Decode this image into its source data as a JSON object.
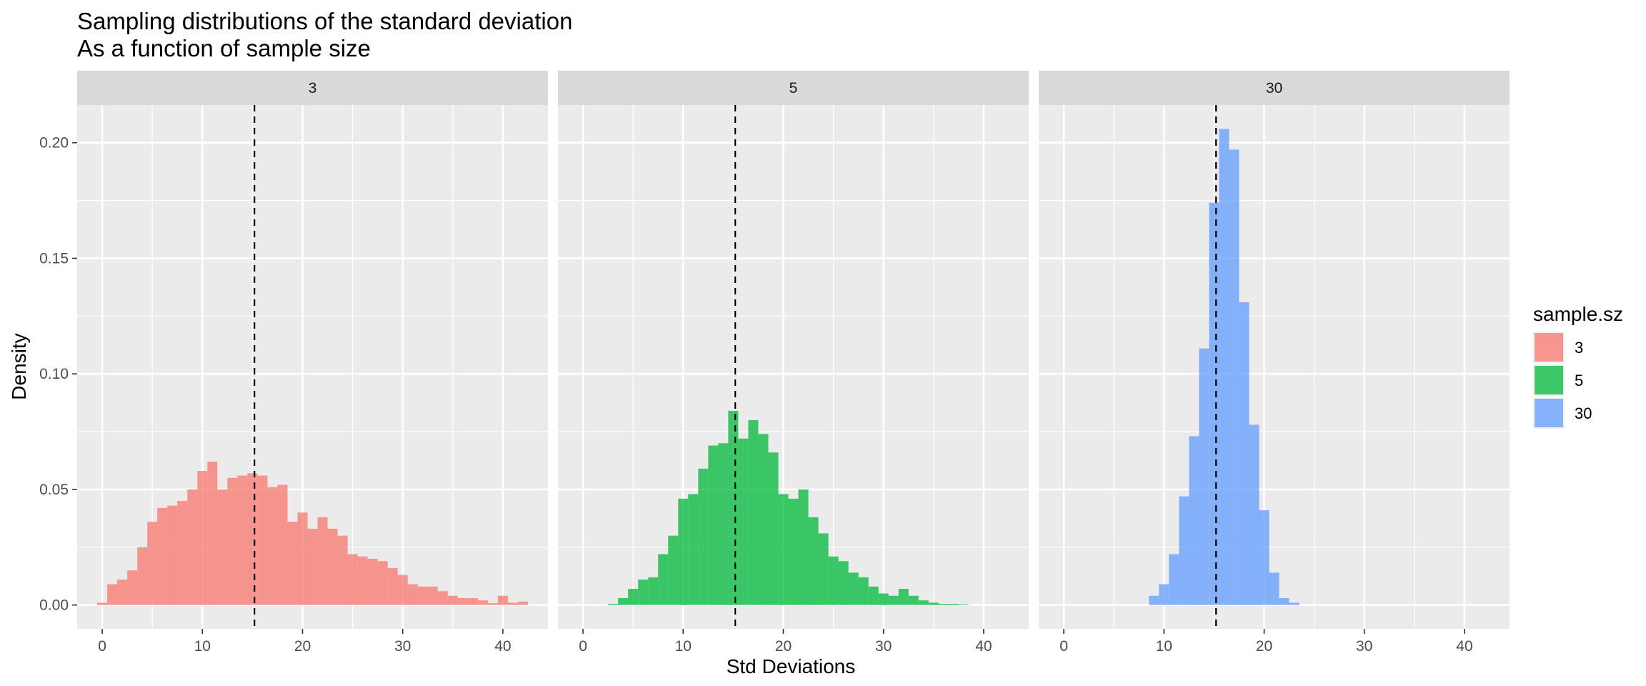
{
  "chart_data": {
    "type": "bar",
    "title": "Sampling distributions of the standard deviation",
    "subtitle": "As a function of sample size",
    "xlabel": "Std Deviations",
    "ylabel": "Density",
    "xlim": [
      -2.5,
      44.5
    ],
    "ylim": [
      -0.0103,
      0.2163
    ],
    "x_ticks": [
      0,
      10,
      20,
      30,
      40
    ],
    "x_tick_labels": [
      "0",
      "10",
      "20",
      "30",
      "40"
    ],
    "y_ticks": [
      0,
      0.05,
      0.1,
      0.15,
      0.2
    ],
    "y_tick_labels": [
      "0.00",
      "0.05",
      "0.10",
      "0.15",
      "0.20"
    ],
    "vline_x": 15.2,
    "bin_width": 1,
    "grid": true,
    "legend": {
      "title": "sample.sz",
      "placement": "right",
      "entries": [
        "3",
        "5",
        "30"
      ]
    },
    "panels": [
      {
        "strip": "3",
        "color": "#F8766D",
        "bars": [
          {
            "x": 0,
            "y": 0.001
          },
          {
            "x": 1,
            "y": 0.009
          },
          {
            "x": 2,
            "y": 0.011
          },
          {
            "x": 3,
            "y": 0.015
          },
          {
            "x": 4,
            "y": 0.025
          },
          {
            "x": 5,
            "y": 0.036
          },
          {
            "x": 6,
            "y": 0.042
          },
          {
            "x": 7,
            "y": 0.043
          },
          {
            "x": 8,
            "y": 0.045
          },
          {
            "x": 9,
            "y": 0.05
          },
          {
            "x": 10,
            "y": 0.058
          },
          {
            "x": 11,
            "y": 0.062
          },
          {
            "x": 12,
            "y": 0.05
          },
          {
            "x": 13,
            "y": 0.055
          },
          {
            "x": 14,
            "y": 0.056
          },
          {
            "x": 15,
            "y": 0.057
          },
          {
            "x": 16,
            "y": 0.056
          },
          {
            "x": 17,
            "y": 0.051
          },
          {
            "x": 18,
            "y": 0.052
          },
          {
            "x": 19,
            "y": 0.036
          },
          {
            "x": 20,
            "y": 0.04
          },
          {
            "x": 21,
            "y": 0.033
          },
          {
            "x": 22,
            "y": 0.038
          },
          {
            "x": 23,
            "y": 0.033
          },
          {
            "x": 24,
            "y": 0.03
          },
          {
            "x": 25,
            "y": 0.022
          },
          {
            "x": 26,
            "y": 0.021
          },
          {
            "x": 27,
            "y": 0.02
          },
          {
            "x": 28,
            "y": 0.019
          },
          {
            "x": 29,
            "y": 0.016
          },
          {
            "x": 30,
            "y": 0.013
          },
          {
            "x": 31,
            "y": 0.009
          },
          {
            "x": 32,
            "y": 0.008
          },
          {
            "x": 33,
            "y": 0.008
          },
          {
            "x": 34,
            "y": 0.006
          },
          {
            "x": 35,
            "y": 0.004
          },
          {
            "x": 36,
            "y": 0.003
          },
          {
            "x": 37,
            "y": 0.003
          },
          {
            "x": 38,
            "y": 0.002
          },
          {
            "x": 39,
            "y": 0.0008
          },
          {
            "x": 40,
            "y": 0.004
          },
          {
            "x": 41,
            "y": 0.001
          },
          {
            "x": 42,
            "y": 0.0015
          },
          {
            "x": 45,
            "y": 0.0007
          }
        ]
      },
      {
        "strip": "5",
        "color": "#00BA38",
        "bars": [
          {
            "x": 3,
            "y": 0.0005
          },
          {
            "x": 4,
            "y": 0.003
          },
          {
            "x": 5,
            "y": 0.007
          },
          {
            "x": 6,
            "y": 0.011
          },
          {
            "x": 7,
            "y": 0.012
          },
          {
            "x": 8,
            "y": 0.022
          },
          {
            "x": 9,
            "y": 0.03
          },
          {
            "x": 10,
            "y": 0.046
          },
          {
            "x": 11,
            "y": 0.048
          },
          {
            "x": 12,
            "y": 0.059
          },
          {
            "x": 13,
            "y": 0.069
          },
          {
            "x": 14,
            "y": 0.07
          },
          {
            "x": 15,
            "y": 0.084
          },
          {
            "x": 16,
            "y": 0.072
          },
          {
            "x": 17,
            "y": 0.08
          },
          {
            "x": 18,
            "y": 0.074
          },
          {
            "x": 19,
            "y": 0.066
          },
          {
            "x": 20,
            "y": 0.048
          },
          {
            "x": 21,
            "y": 0.046
          },
          {
            "x": 22,
            "y": 0.05
          },
          {
            "x": 23,
            "y": 0.038
          },
          {
            "x": 24,
            "y": 0.031
          },
          {
            "x": 25,
            "y": 0.021
          },
          {
            "x": 26,
            "y": 0.019
          },
          {
            "x": 27,
            "y": 0.014
          },
          {
            "x": 28,
            "y": 0.012
          },
          {
            "x": 29,
            "y": 0.008
          },
          {
            "x": 30,
            "y": 0.005
          },
          {
            "x": 31,
            "y": 0.004
          },
          {
            "x": 32,
            "y": 0.007
          },
          {
            "x": 33,
            "y": 0.004
          },
          {
            "x": 34,
            "y": 0.002
          },
          {
            "x": 35,
            "y": 0.001
          },
          {
            "x": 36,
            "y": 0.0005
          },
          {
            "x": 37,
            "y": 0.0005
          },
          {
            "x": 38,
            "y": 0.0003
          }
        ]
      },
      {
        "strip": "30",
        "color": "#619CFF",
        "bars": [
          {
            "x": 9,
            "y": 0.004
          },
          {
            "x": 10,
            "y": 0.009
          },
          {
            "x": 11,
            "y": 0.022
          },
          {
            "x": 12,
            "y": 0.047
          },
          {
            "x": 13,
            "y": 0.073
          },
          {
            "x": 14,
            "y": 0.111
          },
          {
            "x": 15,
            "y": 0.174
          },
          {
            "x": 16,
            "y": 0.206
          },
          {
            "x": 17,
            "y": 0.197
          },
          {
            "x": 18,
            "y": 0.131
          },
          {
            "x": 19,
            "y": 0.078
          },
          {
            "x": 20,
            "y": 0.041
          },
          {
            "x": 21,
            "y": 0.014
          },
          {
            "x": 22,
            "y": 0.003
          },
          {
            "x": 23,
            "y": 0.001
          }
        ]
      }
    ]
  }
}
